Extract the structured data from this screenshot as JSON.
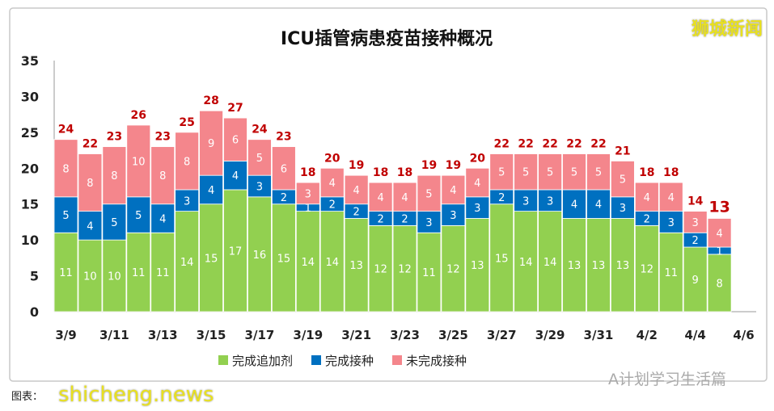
{
  "chart_data": {
    "type": "bar",
    "stacked": true,
    "title": "ICU插管病患疫苗接种概况",
    "categories": [
      "3/9",
      "3/10",
      "3/11",
      "3/12",
      "3/13",
      "3/14",
      "3/15",
      "3/16",
      "3/17",
      "3/18",
      "3/19",
      "3/20",
      "3/21",
      "3/22",
      "3/23",
      "3/24",
      "3/25",
      "3/26",
      "3/27",
      "3/28",
      "3/29",
      "3/30",
      "3/31",
      "4/1",
      "4/2",
      "4/3",
      "4/4",
      "4/5"
    ],
    "x_tick_labels": [
      "3/9",
      "3/11",
      "3/13",
      "3/15",
      "3/17",
      "3/19",
      "3/21",
      "3/23",
      "3/25",
      "3/27",
      "3/29",
      "3/31",
      "4/2",
      "4/4",
      "4/6"
    ],
    "series": [
      {
        "name": "完成追加剂",
        "color": "#92d050",
        "values": [
          11,
          10,
          10,
          11,
          11,
          14,
          15,
          17,
          16,
          15,
          14,
          14,
          13,
          12,
          12,
          11,
          12,
          13,
          15,
          14,
          14,
          13,
          13,
          13,
          12,
          11,
          9,
          8
        ]
      },
      {
        "name": "完成接种",
        "color": "#0070c0",
        "values": [
          5,
          4,
          5,
          5,
          4,
          3,
          4,
          4,
          3,
          2,
          1,
          2,
          2,
          2,
          2,
          3,
          3,
          3,
          2,
          3,
          3,
          4,
          4,
          3,
          2,
          3,
          2,
          1
        ]
      },
      {
        "name": "未完成接种",
        "color": "#f4868c",
        "values": [
          8,
          8,
          8,
          10,
          8,
          8,
          9,
          6,
          5,
          6,
          3,
          4,
          4,
          4,
          4,
          5,
          4,
          4,
          5,
          5,
          5,
          5,
          5,
          5,
          4,
          4,
          3,
          4
        ]
      }
    ],
    "totals": [
      24,
      22,
      23,
      26,
      23,
      25,
      28,
      27,
      24,
      23,
      18,
      20,
      19,
      18,
      18,
      19,
      19,
      20,
      22,
      22,
      22,
      22,
      22,
      21,
      18,
      18,
      14,
      13
    ],
    "total_label_color": "#c00000",
    "ylim": [
      0,
      35
    ],
    "y_ticks": [
      0,
      5,
      10,
      15,
      20,
      25,
      30,
      35
    ],
    "grid": false,
    "legend_position": "bottom"
  },
  "footer": {
    "credit": "图表："
  },
  "watermarks": {
    "top_right": "狮城新闻",
    "bottom_left": "shicheng.news",
    "bottom_right": "A计划学习生活篇"
  }
}
